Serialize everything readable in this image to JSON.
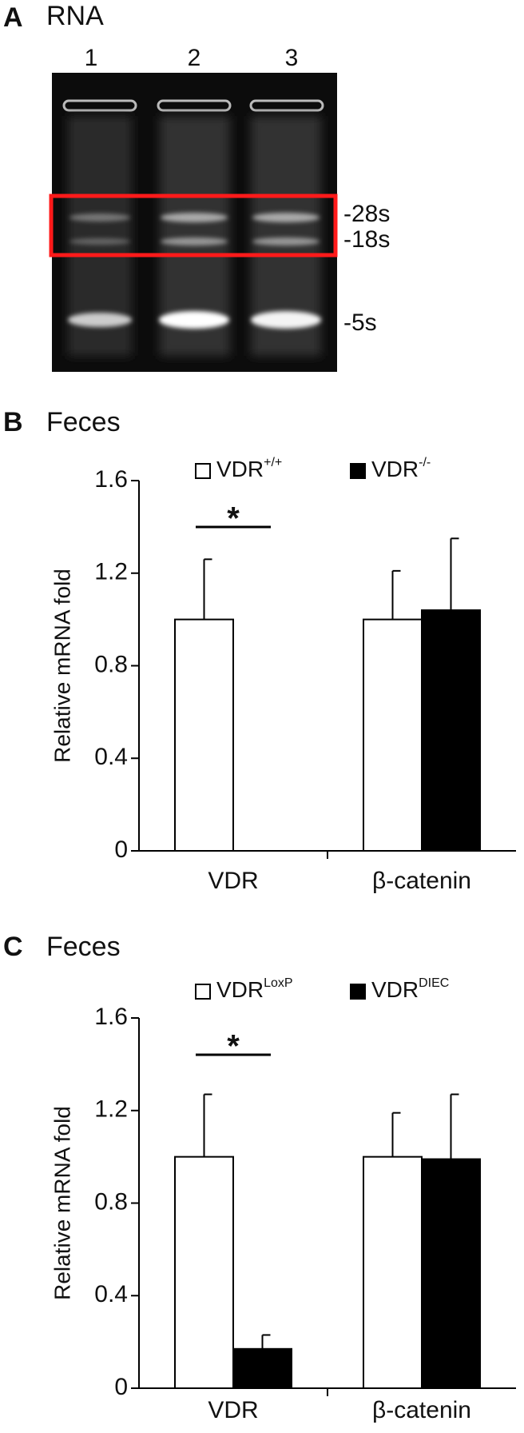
{
  "panel_a": {
    "letter": "A",
    "title": "RNA",
    "lanes": [
      "1",
      "2",
      "3"
    ],
    "bands": [
      "-28s",
      "-18s",
      "-5s"
    ]
  },
  "chart_data": [
    {
      "type": "bar",
      "letter": "B",
      "title": "Feces",
      "ylabel": "Relative mRNA fold",
      "categories": [
        "VDR",
        "β-catenin"
      ],
      "series": [
        {
          "name": "VDR",
          "name_superscript": "+/+",
          "color": "#ffffff",
          "values": [
            1.0,
            1.0
          ],
          "errors": [
            0.26,
            0.21
          ]
        },
        {
          "name": "VDR",
          "name_superscript": "-/-",
          "color": "#000000",
          "values": [
            0,
            1.04
          ],
          "errors": [
            0,
            0.31
          ]
        }
      ],
      "annotations": [
        {
          "text": "*",
          "category": 0
        }
      ],
      "ylim": [
        0,
        1.6
      ],
      "yticks": [
        0,
        0.4,
        0.8,
        1.2,
        1.6
      ],
      "grid": false
    },
    {
      "type": "bar",
      "letter": "C",
      "title": "Feces",
      "ylabel": "Relative mRNA fold",
      "categories": [
        "VDR",
        "β-catenin"
      ],
      "series": [
        {
          "name": "VDR",
          "name_superscript": "LoxP",
          "color": "#ffffff",
          "values": [
            1.0,
            1.0
          ],
          "errors": [
            0.27,
            0.19
          ]
        },
        {
          "name": "VDR",
          "name_superscript": "DIEC",
          "color": "#000000",
          "values": [
            0.17,
            0.99
          ],
          "errors": [
            0.06,
            0.28
          ]
        }
      ],
      "annotations": [
        {
          "text": "*",
          "category": 0
        }
      ],
      "ylim": [
        0,
        1.6
      ],
      "yticks": [
        0,
        0.4,
        0.8,
        1.2,
        1.6
      ],
      "grid": false
    }
  ]
}
